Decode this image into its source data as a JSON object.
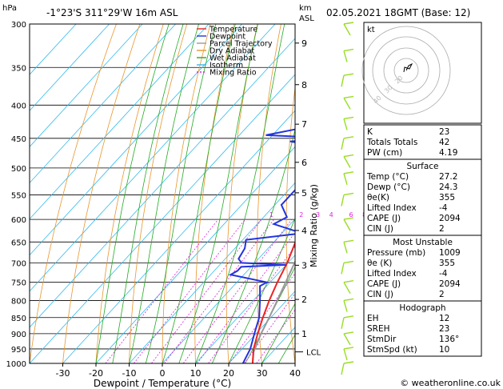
{
  "header": {
    "left_title": "-1°23'S  311°29'W  16m  ASL",
    "right_title": "02.05.2021  18GMT  (Base: 12)",
    "hpa_label": "hPa",
    "km_label": "km",
    "asl_label": "ASL"
  },
  "colors": {
    "temperature": "#ee2222",
    "dewpoint": "#2233dd",
    "parcel": "#999999",
    "dry_adiabat": "#e8962e",
    "wet_adiabat": "#22aa22",
    "isotherm": "#33bbee",
    "mixing_ratio": "#dd22dd",
    "wind": "#99dd22"
  },
  "chart_data": {
    "type": "line",
    "xlabel": "Dewpoint / Temperature (°C)",
    "ylabel_right": "Mixing Ratio (g/kg)",
    "xlim": [
      -40,
      40
    ],
    "ylim_hpa": [
      1000,
      300
    ],
    "x_ticks": [
      -30,
      -20,
      -10,
      0,
      10,
      20,
      30,
      40
    ],
    "pressure_ticks": [
      300,
      350,
      400,
      450,
      500,
      550,
      600,
      650,
      700,
      750,
      800,
      850,
      900,
      950,
      1000
    ],
    "km_ticks": [
      {
        "label": "1",
        "p": 900
      },
      {
        "label": "2",
        "p": 797
      },
      {
        "label": "3",
        "p": 706
      },
      {
        "label": "4",
        "p": 624
      },
      {
        "label": "5",
        "p": 546
      },
      {
        "label": "6",
        "p": 490
      },
      {
        "label": "7",
        "p": 428
      },
      {
        "label": "8",
        "p": 372
      },
      {
        "label": "9",
        "p": 321
      }
    ],
    "lcl": {
      "label": "LCL",
      "p": 960
    },
    "mixing_ratio_labels": [
      {
        "label": "1",
        "t": -7
      },
      {
        "label": "2",
        "t": 2
      },
      {
        "label": "3",
        "t": 7
      },
      {
        "label": "4",
        "t": 11
      },
      {
        "label": "6",
        "t": 17
      },
      {
        "label": "8",
        "t": 21
      },
      {
        "label": "10",
        "t": 24
      },
      {
        "label": "15",
        "t": 30
      },
      {
        "label": "20",
        "t": 34
      },
      {
        "label": "25",
        "t": 37
      }
    ],
    "legend": [
      "Temperature",
      "Dewpoint",
      "Parcel Trajectory",
      "Dry Adiabat",
      "Wet Adiabat",
      "Isotherm",
      "Mixing Ratio"
    ],
    "temperature": [
      {
        "p": 1000,
        "t": 27.2
      },
      {
        "p": 950,
        "t": 23.5
      },
      {
        "p": 900,
        "t": 20.5
      },
      {
        "p": 850,
        "t": 17.6
      },
      {
        "p": 800,
        "t": 14.8
      },
      {
        "p": 750,
        "t": 12.2
      },
      {
        "p": 700,
        "t": 9.8
      },
      {
        "p": 650,
        "t": 6.5
      },
      {
        "p": 600,
        "t": 3.5
      },
      {
        "p": 550,
        "t": 0.5
      },
      {
        "p": 500,
        "t": -4
      },
      {
        "p": 450,
        "t": -8
      },
      {
        "p": 400,
        "t": -13.5
      },
      {
        "p": 350,
        "t": -22
      },
      {
        "p": 320,
        "t": -26
      },
      {
        "p": 300,
        "t": -29
      }
    ],
    "dewpoint": [
      {
        "p": 1000,
        "t": 24.3
      },
      {
        "p": 950,
        "t": 22.5
      },
      {
        "p": 900,
        "t": 19.5
      },
      {
        "p": 850,
        "t": 16.5
      },
      {
        "p": 800,
        "t": 12
      },
      {
        "p": 760,
        "t": 8
      },
      {
        "p": 750,
        "t": 9
      },
      {
        "p": 730,
        "t": -4
      },
      {
        "p": 720,
        "t": -3
      },
      {
        "p": 710,
        "t": -3
      },
      {
        "p": 705,
        "t": 10
      },
      {
        "p": 700,
        "t": -4
      },
      {
        "p": 690,
        "t": -6
      },
      {
        "p": 665,
        "t": -7
      },
      {
        "p": 645,
        "t": -9
      },
      {
        "p": 630,
        "t": 6
      },
      {
        "p": 610,
        "t": -5
      },
      {
        "p": 595,
        "t": -3
      },
      {
        "p": 570,
        "t": -8
      },
      {
        "p": 540,
        "t": -8
      },
      {
        "p": 510,
        "t": -10
      },
      {
        "p": 500,
        "t": -4
      },
      {
        "p": 480,
        "t": -9
      },
      {
        "p": 465,
        "t": -10
      },
      {
        "p": 455,
        "t": -23
      },
      {
        "p": 450,
        "t": -9
      },
      {
        "p": 445,
        "t": -32
      },
      {
        "p": 420,
        "t": -12
      },
      {
        "p": 400,
        "t": -30
      },
      {
        "p": 385,
        "t": -14
      },
      {
        "p": 375,
        "t": -35
      },
      {
        "p": 350,
        "t": -20
      },
      {
        "p": 340,
        "t": -31
      },
      {
        "p": 320,
        "t": -29
      },
      {
        "p": 300,
        "t": -33
      }
    ],
    "parcel": [
      {
        "p": 1000,
        "t": 27.2
      },
      {
        "p": 960,
        "t": 24.3
      },
      {
        "p": 900,
        "t": 21.5
      },
      {
        "p": 850,
        "t": 19.5
      },
      {
        "p": 800,
        "t": 17.2
      },
      {
        "p": 750,
        "t": 14.7
      },
      {
        "p": 700,
        "t": 12
      },
      {
        "p": 650,
        "t": 9
      },
      {
        "p": 600,
        "t": 5.8
      },
      {
        "p": 550,
        "t": 2.2
      },
      {
        "p": 500,
        "t": -1.8
      },
      {
        "p": 450,
        "t": -6.5
      },
      {
        "p": 400,
        "t": -12
      },
      {
        "p": 350,
        "t": -18.5
      },
      {
        "p": 300,
        "t": -26.5
      }
    ]
  },
  "hodograph": {
    "label": "kt",
    "ring_labels": [
      "40",
      "30",
      "20"
    ]
  },
  "indices": {
    "top": [
      {
        "name": "K",
        "value": "23"
      },
      {
        "name": "Totals Totals",
        "value": "42"
      },
      {
        "name": "PW (cm)",
        "value": "4.19"
      }
    ],
    "surface": {
      "title": "Surface",
      "rows": [
        {
          "name": "Temp (°C)",
          "value": "27.2"
        },
        {
          "name": "Dewp (°C)",
          "value": "24.3"
        },
        {
          "name": "θe(K)",
          "value": "355"
        },
        {
          "name": "Lifted Index",
          "value": "-4"
        },
        {
          "name": "CAPE (J)",
          "value": "2094"
        },
        {
          "name": "CIN (J)",
          "value": "2"
        }
      ]
    },
    "most_unstable": {
      "title": "Most Unstable",
      "rows": [
        {
          "name": "Pressure (mb)",
          "value": "1009"
        },
        {
          "name": "θe (K)",
          "value": "355"
        },
        {
          "name": "Lifted Index",
          "value": "-4"
        },
        {
          "name": "CAPE (J)",
          "value": "2094"
        },
        {
          "name": "CIN (J)",
          "value": "2"
        }
      ]
    },
    "hodograph": {
      "title": "Hodograph",
      "rows": [
        {
          "name": "EH",
          "value": "12"
        },
        {
          "name": "SREH",
          "value": "23"
        },
        {
          "name": "StmDir",
          "value": "136°"
        },
        {
          "name": "StmSpd (kt)",
          "value": "10"
        }
      ]
    }
  },
  "footer": {
    "copyright": "© weatheronline.co.uk"
  }
}
